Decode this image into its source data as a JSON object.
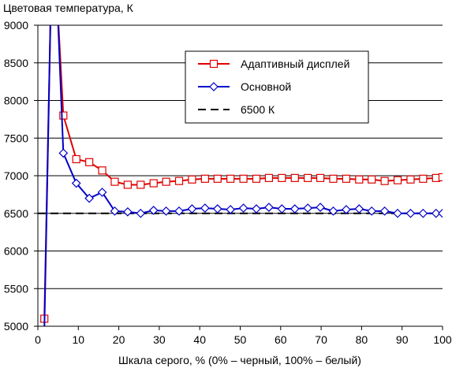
{
  "chart_data": {
    "type": "line",
    "title": "",
    "ylabel": "Цветовая температура, К",
    "xlabel": "Шкала серого, % (0% – черный, 100% – белый)",
    "xlim": [
      0,
      100
    ],
    "ylim": [
      5000,
      9000
    ],
    "xticks": [
      0,
      10,
      20,
      30,
      40,
      50,
      60,
      70,
      80,
      90,
      100
    ],
    "yticks": [
      5000,
      5500,
      6000,
      6500,
      7000,
      7500,
      8000,
      8500,
      9000
    ],
    "grid": "horizontal",
    "legend_position": "top-right",
    "series": [
      {
        "name": "Адаптивный дисплей",
        "color": "#e00000",
        "marker": "square",
        "x": [
          1.6,
          3.2,
          4.8,
          6.3,
          9.5,
          12.7,
          15.9,
          19.0,
          22.2,
          25.4,
          28.6,
          31.7,
          34.9,
          38.1,
          41.3,
          44.4,
          47.6,
          50.8,
          54.0,
          57.1,
          60.3,
          63.5,
          66.7,
          69.8,
          73.0,
          76.2,
          79.4,
          82.5,
          85.7,
          88.9,
          92.1,
          95.2,
          98.4,
          100
        ],
        "y": [
          5100,
          9300,
          9300,
          7800,
          7220,
          7180,
          7070,
          6920,
          6880,
          6880,
          6900,
          6920,
          6930,
          6950,
          6960,
          6960,
          6960,
          6960,
          6960,
          6970,
          6970,
          6970,
          6970,
          6970,
          6960,
          6960,
          6950,
          6950,
          6930,
          6940,
          6950,
          6960,
          6970,
          6980
        ]
      },
      {
        "name": "Основной",
        "color": "#0000c8",
        "marker": "diamond",
        "x": [
          1.6,
          3.2,
          4.8,
          6.3,
          9.5,
          12.7,
          15.9,
          19.0,
          22.2,
          25.4,
          28.6,
          31.7,
          34.9,
          38.1,
          41.3,
          44.4,
          47.6,
          50.8,
          54.0,
          57.1,
          60.3,
          63.5,
          66.7,
          69.8,
          73.0,
          76.2,
          79.4,
          82.5,
          85.7,
          88.9,
          92.1,
          95.2,
          98.4,
          100
        ],
        "y": [
          4950,
          9300,
          9300,
          7300,
          6900,
          6700,
          6780,
          6530,
          6520,
          6500,
          6540,
          6530,
          6530,
          6560,
          6570,
          6560,
          6550,
          6570,
          6560,
          6580,
          6560,
          6560,
          6570,
          6580,
          6530,
          6550,
          6560,
          6530,
          6530,
          6500,
          6500,
          6500,
          6500,
          6500
        ]
      },
      {
        "name": "6500 К",
        "color": "#000000",
        "marker": "none",
        "dash": "dashed",
        "x": [
          0,
          100
        ],
        "y": [
          6500,
          6500
        ]
      }
    ]
  }
}
